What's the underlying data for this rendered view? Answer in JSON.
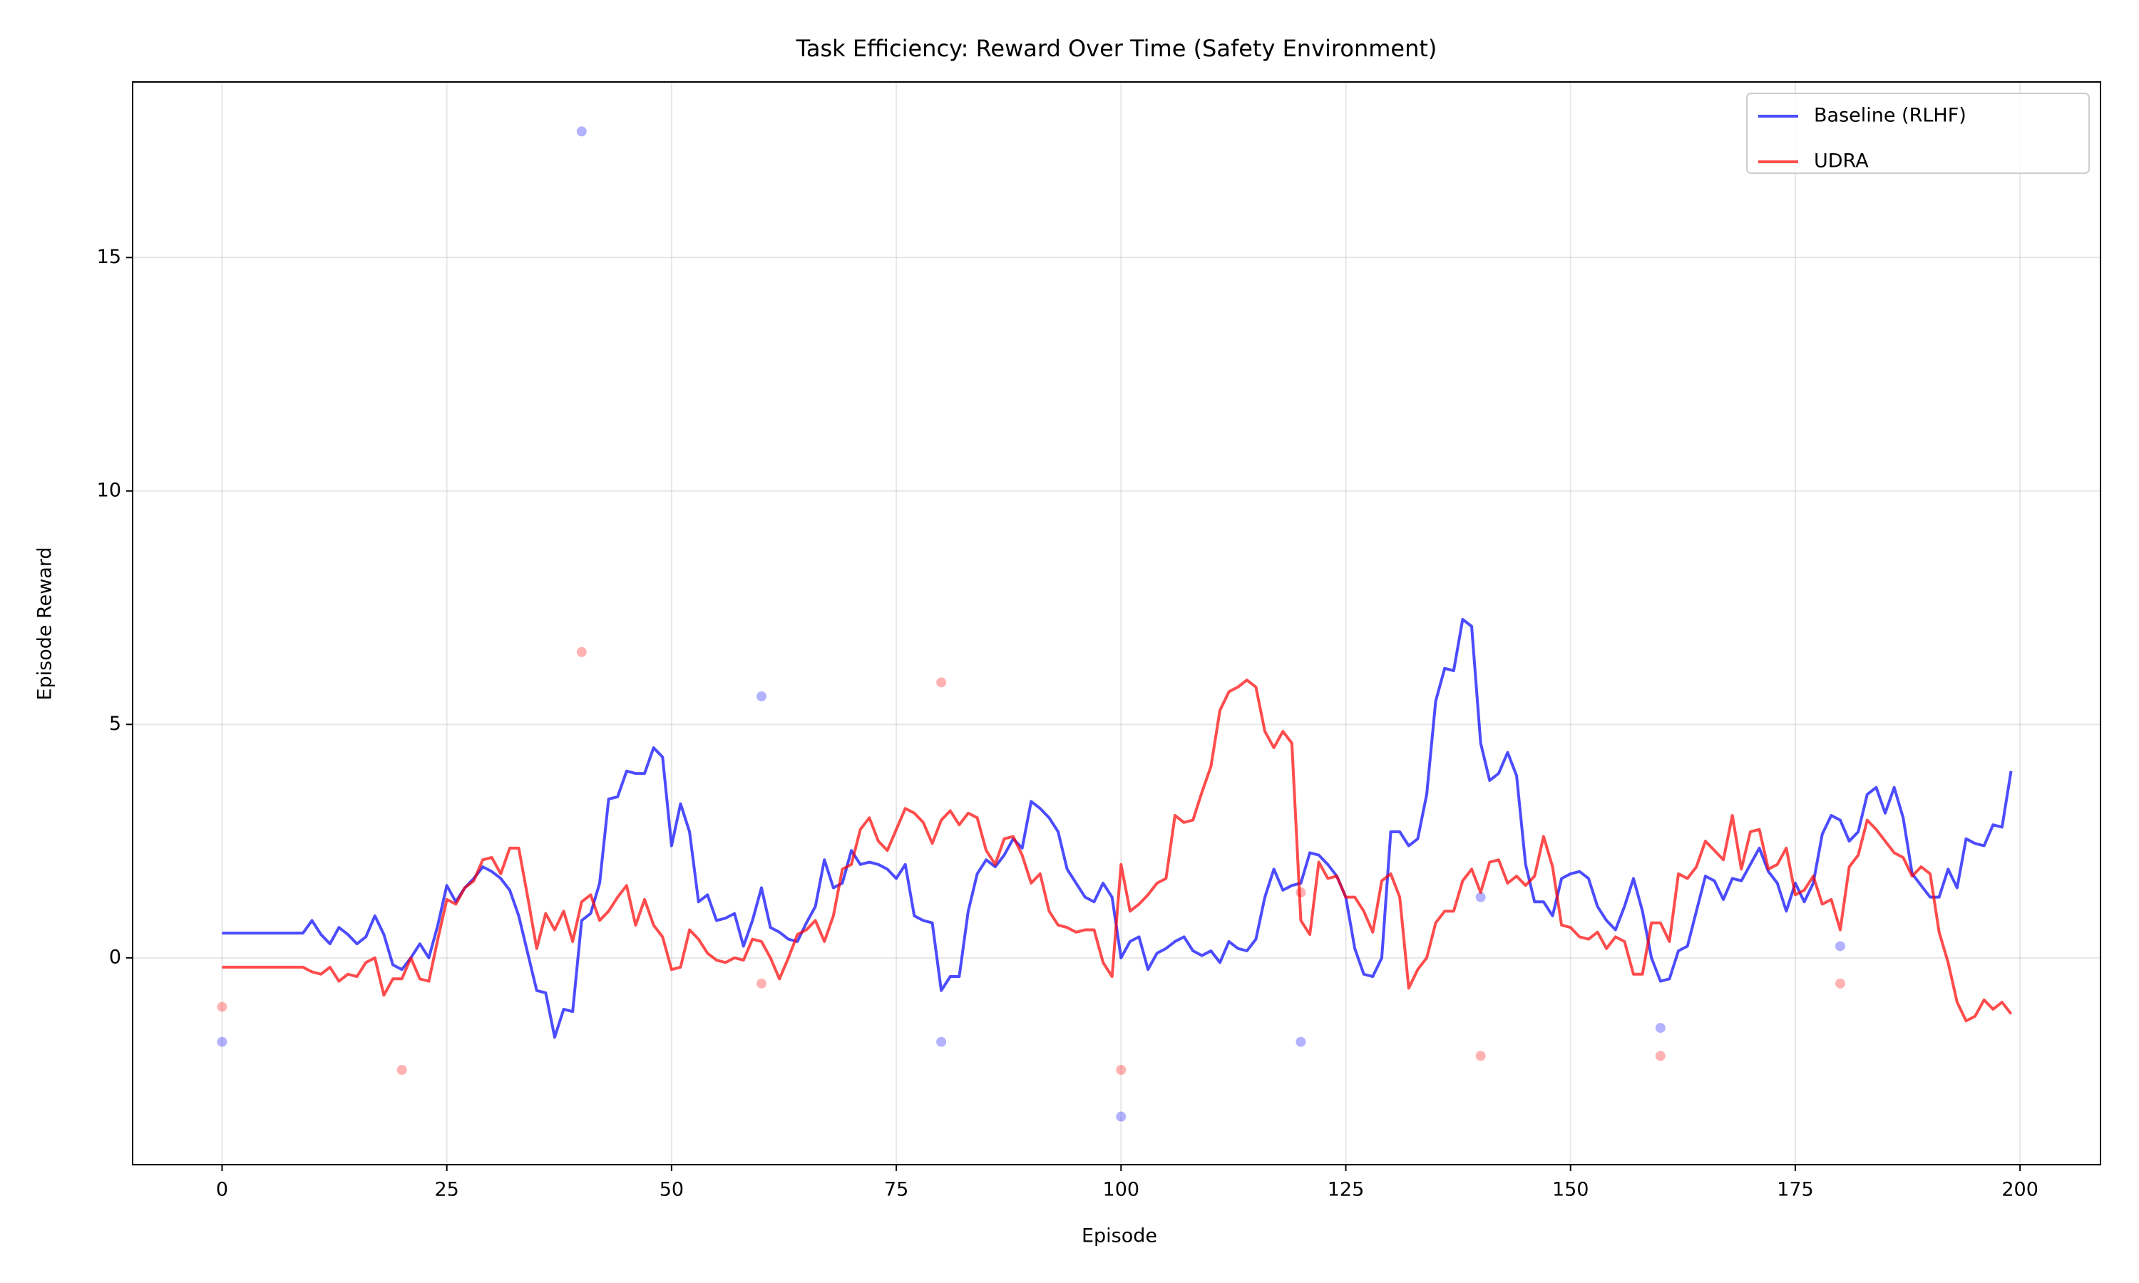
{
  "chart_data": {
    "type": "line",
    "title": "Task Efficiency: Reward Over Time (Safety Environment)",
    "xlabel": "Episode",
    "ylabel": "Episode Reward",
    "x": [
      0,
      1,
      2,
      3,
      4,
      5,
      6,
      7,
      8,
      9,
      10,
      11,
      12,
      13,
      14,
      15,
      16,
      17,
      18,
      19,
      20,
      21,
      22,
      23,
      24,
      25,
      26,
      27,
      28,
      29,
      30,
      31,
      32,
      33,
      34,
      35,
      36,
      37,
      38,
      39,
      40,
      41,
      42,
      43,
      44,
      45,
      46,
      47,
      48,
      49,
      50,
      51,
      52,
      53,
      54,
      55,
      56,
      57,
      58,
      59,
      60,
      61,
      62,
      63,
      64,
      65,
      66,
      67,
      68,
      69,
      70,
      71,
      72,
      73,
      74,
      75,
      76,
      77,
      78,
      79,
      80,
      81,
      82,
      83,
      84,
      85,
      86,
      87,
      88,
      89,
      90,
      91,
      92,
      93,
      94,
      95,
      96,
      97,
      98,
      99,
      100,
      101,
      102,
      103,
      104,
      105,
      106,
      107,
      108,
      109,
      110,
      111,
      112,
      113,
      114,
      115,
      116,
      117,
      118,
      119,
      120,
      121,
      122,
      123,
      124,
      125,
      126,
      127,
      128,
      129,
      130,
      131,
      132,
      133,
      134,
      135,
      136,
      137,
      138,
      139,
      140,
      141,
      142,
      143,
      144,
      145,
      146,
      147,
      148,
      149,
      150,
      151,
      152,
      153,
      154,
      155,
      156,
      157,
      158,
      159,
      160,
      161,
      162,
      163,
      164,
      165,
      166,
      167,
      168,
      169,
      170,
      171,
      172,
      173,
      174,
      175,
      176,
      177,
      178,
      179,
      180,
      181,
      182,
      183,
      184,
      185,
      186,
      187,
      188,
      189,
      190,
      191,
      192,
      193,
      194,
      195,
      196,
      197,
      198,
      199
    ],
    "series": [
      {
        "name": "Baseline (RLHF)",
        "color": "#0000ff",
        "values": [
          0.53,
          0.53,
          0.53,
          0.53,
          0.53,
          0.53,
          0.53,
          0.53,
          0.53,
          0.53,
          0.8,
          0.5,
          0.3,
          0.65,
          0.5,
          0.3,
          0.45,
          0.9,
          0.5,
          -0.15,
          -0.25,
          0.0,
          0.3,
          0.0,
          0.7,
          1.55,
          1.2,
          1.5,
          1.7,
          1.95,
          1.85,
          1.7,
          1.45,
          0.9,
          0.1,
          -0.7,
          -0.75,
          -1.7,
          -1.1,
          -1.15,
          0.8,
          0.95,
          1.6,
          3.4,
          3.45,
          4.0,
          3.95,
          3.95,
          4.5,
          4.3,
          2.4,
          3.3,
          2.7,
          1.2,
          1.35,
          0.8,
          0.85,
          0.95,
          0.25,
          0.8,
          1.5,
          0.65,
          0.55,
          0.4,
          0.35,
          0.75,
          1.1,
          2.1,
          1.5,
          1.6,
          2.3,
          2.0,
          2.05,
          2.0,
          1.9,
          1.7,
          2.0,
          0.9,
          0.8,
          0.75,
          -0.7,
          -0.4,
          -0.4,
          1.0,
          1.8,
          2.1,
          1.95,
          2.2,
          2.55,
          2.35,
          3.35,
          3.2,
          3.0,
          2.7,
          1.9,
          1.6,
          1.3,
          1.2,
          1.6,
          1.3,
          0.0,
          0.35,
          0.45,
          -0.25,
          0.1,
          0.2,
          0.35,
          0.45,
          0.15,
          0.05,
          0.15,
          -0.1,
          0.35,
          0.2,
          0.15,
          0.4,
          1.3,
          1.9,
          1.45,
          1.55,
          1.6,
          2.25,
          2.2,
          2.0,
          1.75,
          1.3,
          0.2,
          -0.35,
          -0.4,
          0.0,
          2.7,
          2.7,
          2.4,
          2.55,
          3.5,
          5.5,
          6.2,
          6.15,
          7.25,
          7.1,
          4.6,
          3.8,
          3.95,
          4.4,
          3.9,
          2.0,
          1.2,
          1.2,
          0.9,
          1.7,
          1.8,
          1.85,
          1.7,
          1.1,
          0.8,
          0.6,
          1.1,
          1.7,
          1.0,
          0.0,
          -0.5,
          -0.45,
          0.15,
          0.25,
          1.0,
          1.75,
          1.65,
          1.25,
          1.7,
          1.65,
          2.0,
          2.35,
          1.85,
          1.6,
          1.0,
          1.6,
          1.2,
          1.6,
          2.65,
          3.05,
          2.95,
          2.5,
          2.7,
          3.5,
          3.65,
          3.1,
          3.65,
          3.0,
          1.8,
          1.55,
          1.3,
          1.3,
          1.9,
          1.5,
          2.55,
          2.45,
          2.4,
          2.85,
          2.8,
          4.0
        ],
        "points": {
          "x": [
            0,
            40,
            60,
            80,
            100,
            120,
            140,
            160,
            180
          ],
          "y": [
            -1.8,
            17.7,
            5.6,
            -1.8,
            -3.4,
            -1.8,
            1.3,
            -1.5,
            0.25
          ]
        }
      },
      {
        "name": "UDRA",
        "color": "#ff0000",
        "values": [
          -0.2,
          -0.2,
          -0.2,
          -0.2,
          -0.2,
          -0.2,
          -0.2,
          -0.2,
          -0.2,
          -0.2,
          -0.3,
          -0.35,
          -0.2,
          -0.5,
          -0.35,
          -0.4,
          -0.1,
          0.0,
          -0.8,
          -0.45,
          -0.45,
          0.0,
          -0.45,
          -0.5,
          0.4,
          1.25,
          1.15,
          1.5,
          1.65,
          2.1,
          2.15,
          1.8,
          2.35,
          2.35,
          1.3,
          0.2,
          0.95,
          0.6,
          1.0,
          0.35,
          1.2,
          1.35,
          0.8,
          1.0,
          1.3,
          1.55,
          0.7,
          1.25,
          0.7,
          0.45,
          -0.25,
          -0.2,
          0.6,
          0.4,
          0.1,
          -0.05,
          -0.1,
          0.0,
          -0.05,
          0.4,
          0.35,
          0.0,
          -0.45,
          0.0,
          0.5,
          0.6,
          0.8,
          0.35,
          0.9,
          1.9,
          2.0,
          2.75,
          3.0,
          2.5,
          2.3,
          2.75,
          3.2,
          3.1,
          2.9,
          2.45,
          2.95,
          3.15,
          2.85,
          3.1,
          3.0,
          2.3,
          2.0,
          2.55,
          2.6,
          2.2,
          1.6,
          1.8,
          1.0,
          0.7,
          0.65,
          0.55,
          0.6,
          0.6,
          -0.1,
          -0.4,
          2.0,
          1.0,
          1.15,
          1.35,
          1.6,
          1.7,
          3.05,
          2.9,
          2.95,
          3.55,
          4.1,
          5.3,
          5.7,
          5.8,
          5.95,
          5.8,
          4.85,
          4.5,
          4.85,
          4.6,
          0.8,
          0.5,
          2.05,
          1.7,
          1.75,
          1.3,
          1.3,
          1.0,
          0.55,
          1.65,
          1.8,
          1.3,
          -0.65,
          -0.25,
          0.0,
          0.75,
          1.0,
          1.0,
          1.65,
          1.9,
          1.4,
          2.05,
          2.1,
          1.6,
          1.75,
          1.55,
          1.75,
          2.6,
          1.95,
          0.7,
          0.65,
          0.45,
          0.4,
          0.55,
          0.2,
          0.45,
          0.35,
          -0.35,
          -0.35,
          0.75,
          0.75,
          0.35,
          1.8,
          1.7,
          1.95,
          2.5,
          2.3,
          2.1,
          3.05,
          1.9,
          2.7,
          2.75,
          1.9,
          2.0,
          2.35,
          1.35,
          1.45,
          1.75,
          1.15,
          1.25,
          0.6,
          1.95,
          2.2,
          2.95,
          2.75,
          2.5,
          2.25,
          2.15,
          1.75,
          1.95,
          1.8,
          0.55,
          -0.1,
          -0.95,
          -1.35,
          -1.25,
          -0.9,
          -1.1,
          -0.95,
          -1.2
        ],
        "points": {
          "x": [
            0,
            20,
            40,
            60,
            80,
            100,
            120,
            140,
            160,
            180
          ],
          "y": [
            -1.05,
            -2.4,
            6.55,
            -0.55,
            5.9,
            -2.4,
            1.4,
            -2.1,
            -2.1,
            -0.55
          ]
        }
      }
    ],
    "xlim": [
      -9.95,
      208.95
    ],
    "ylim": [
      -4.43,
      18.76
    ],
    "xticks": [
      0,
      25,
      50,
      75,
      100,
      125,
      150,
      175,
      200
    ],
    "yticks": [
      0,
      5,
      10,
      15
    ],
    "grid": true,
    "legend": "upper right"
  }
}
